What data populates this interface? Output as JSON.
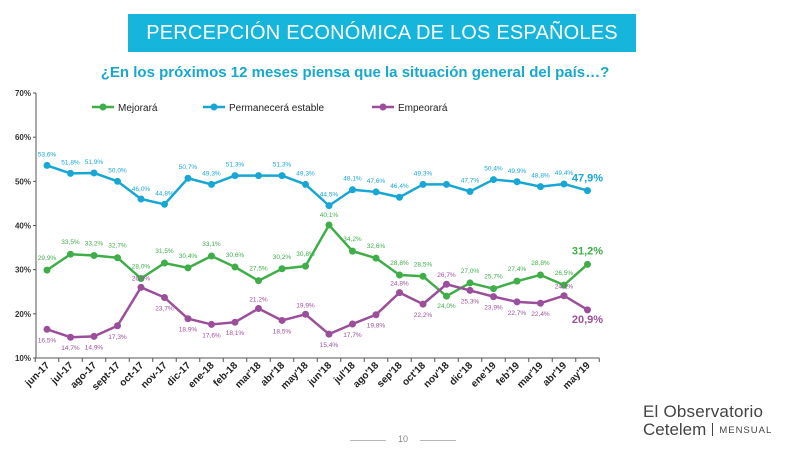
{
  "header": {
    "title": "PERCEPCIÓN  ECONÓMICA DE LOS ESPAÑOLES",
    "question": "¿En los próximos 12 meses piensa que la situación general del país…?"
  },
  "chart_data": {
    "type": "line",
    "categories": [
      "jun-17",
      "jul-17",
      "ago-17",
      "sept-17",
      "oct-17",
      "nov-17",
      "dic-17",
      "ene-18",
      "feb-18",
      "mar'18",
      "abr'18",
      "may'18",
      "jun'18",
      "jul'18",
      "ago'18",
      "sep'18",
      "oct'18",
      "nov'18",
      "dic'18",
      "ene'19",
      "feb'19",
      "mar'19",
      "abr'19",
      "may'19"
    ],
    "y_ticks": [
      "10%",
      "20%",
      "30%",
      "40%",
      "50%",
      "60%",
      "70%"
    ],
    "ylim": [
      10,
      70
    ],
    "legend_position": "top",
    "grid": false,
    "series": [
      {
        "name": "Mejorará",
        "color": "#3fae49",
        "values": [
          29.9,
          33.5,
          33.2,
          32.7,
          28.0,
          31.5,
          30.4,
          33.1,
          30.6,
          27.5,
          30.2,
          30.8,
          40.1,
          34.2,
          32.6,
          28.8,
          28.5,
          24.0,
          27.0,
          25.7,
          27.4,
          28.8,
          26.5,
          31.2
        ],
        "labels": [
          "29,9%",
          "33,5%",
          "33,2%",
          "32,7%",
          "28,0%",
          "31,5%",
          "30,4%",
          "33,1%",
          "30,6%",
          "27,5%",
          "30,2%",
          "30,8%",
          "40,1%",
          "34,2%",
          "32,6%",
          "28,8%",
          "28,5%",
          "24,0%",
          "27,0%",
          "25,7%",
          "27,4%",
          "28,8%",
          "26,5%",
          "31,2%"
        ]
      },
      {
        "name": "Permanecerá estable",
        "color": "#18a7d4",
        "values": [
          53.6,
          51.8,
          51.9,
          50.0,
          46.0,
          44.8,
          50.7,
          49.3,
          51.3,
          51.3,
          51.3,
          49.3,
          44.5,
          48.1,
          47.6,
          46.4,
          49.3,
          49.3,
          47.7,
          50.4,
          49.9,
          48.8,
          49.4,
          47.9
        ],
        "labels": [
          "53,6%",
          "51,8%",
          "51,9%",
          "50,0%",
          "46,0%",
          "44,8%",
          "50,7%",
          "49,3%",
          "51,3%",
          "",
          "51,3%",
          "49,3%",
          "44,5%",
          "48,1%",
          "47,6%",
          "46,4%",
          "49,3%",
          "",
          "47,7%",
          "50,4%",
          "49,9%",
          "48,8%",
          "49,4%",
          "47,9%"
        ]
      },
      {
        "name": "Empeorará",
        "color": "#9b4f9b",
        "values": [
          16.5,
          14.7,
          14.9,
          17.3,
          26.0,
          23.7,
          18.9,
          17.6,
          18.1,
          21.2,
          18.5,
          19.9,
          15.4,
          17.7,
          19.8,
          24.8,
          22.2,
          26.7,
          25.3,
          23.9,
          22.7,
          22.4,
          24.1,
          20.9
        ],
        "labels": [
          "16,5%",
          "14,7%",
          "14,9%",
          "17,3%",
          "26,0%",
          "23,7%",
          "18,9%",
          "17,6%",
          "18,1%",
          "21,2%",
          "18,5%",
          "19,9%",
          "15,4%",
          "17,7%",
          "19,8%",
          "24,8%",
          "22,2%",
          "26,7%",
          "25,3%",
          "23,9%",
          "22,7%",
          "22,4%",
          "24,1%",
          "20,9%"
        ]
      }
    ]
  },
  "branding": {
    "line1": "El Observatorio",
    "line2": "Cetelem",
    "tag": "MENSUAL"
  },
  "footer": {
    "page_number": "10"
  }
}
